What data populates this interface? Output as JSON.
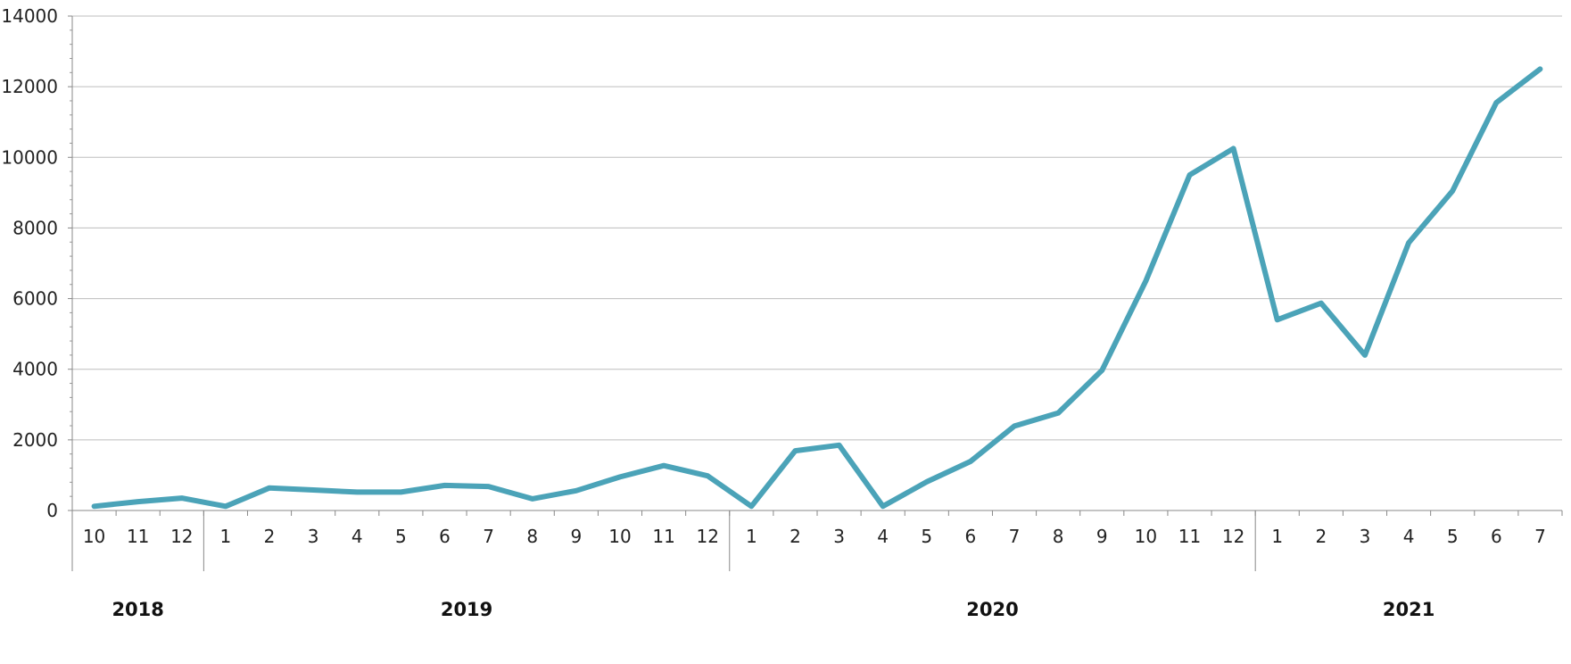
{
  "chart_data": {
    "type": "line",
    "title": "",
    "xlabel": "",
    "ylabel": "",
    "ylim": [
      0,
      14000
    ],
    "y_ticks": [
      0,
      2000,
      4000,
      6000,
      8000,
      10000,
      12000,
      14000
    ],
    "grid": "horizontal",
    "legend": "none",
    "line_color": "#4ba3b8",
    "categories": [
      "10",
      "11",
      "12",
      "1",
      "2",
      "3",
      "4",
      "5",
      "6",
      "7",
      "8",
      "9",
      "10",
      "11",
      "12",
      "1",
      "2",
      "3",
      "4",
      "5",
      "6",
      "7",
      "8",
      "9",
      "10",
      "11",
      "12",
      "1",
      "2",
      "3",
      "4",
      "5",
      "6",
      "7"
    ],
    "years": [
      {
        "label": "2018",
        "start": 0,
        "count": 3
      },
      {
        "label": "2019",
        "start": 3,
        "count": 12
      },
      {
        "label": "2020",
        "start": 15,
        "count": 12
      },
      {
        "label": "2021",
        "start": 27,
        "count": 7
      }
    ],
    "series": [
      {
        "values": [
          120,
          250,
          350,
          120,
          640,
          580,
          520,
          520,
          710,
          680,
          330,
          560,
          950,
          1270,
          980,
          120,
          1690,
          1850,
          120,
          810,
          1390,
          2390,
          2760,
          3970,
          6500,
          9500,
          10250,
          5400,
          5870,
          4400,
          7580,
          9050,
          11550,
          12500
        ]
      }
    ]
  }
}
